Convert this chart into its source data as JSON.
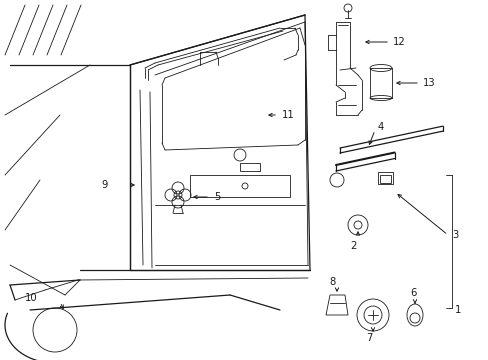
{
  "bg_color": "#ffffff",
  "lc": "#1a1a1a",
  "figsize": [
    4.89,
    3.6
  ],
  "dpi": 100,
  "lw_main": 0.9,
  "lw_thin": 0.6,
  "label_fs": 7.2
}
